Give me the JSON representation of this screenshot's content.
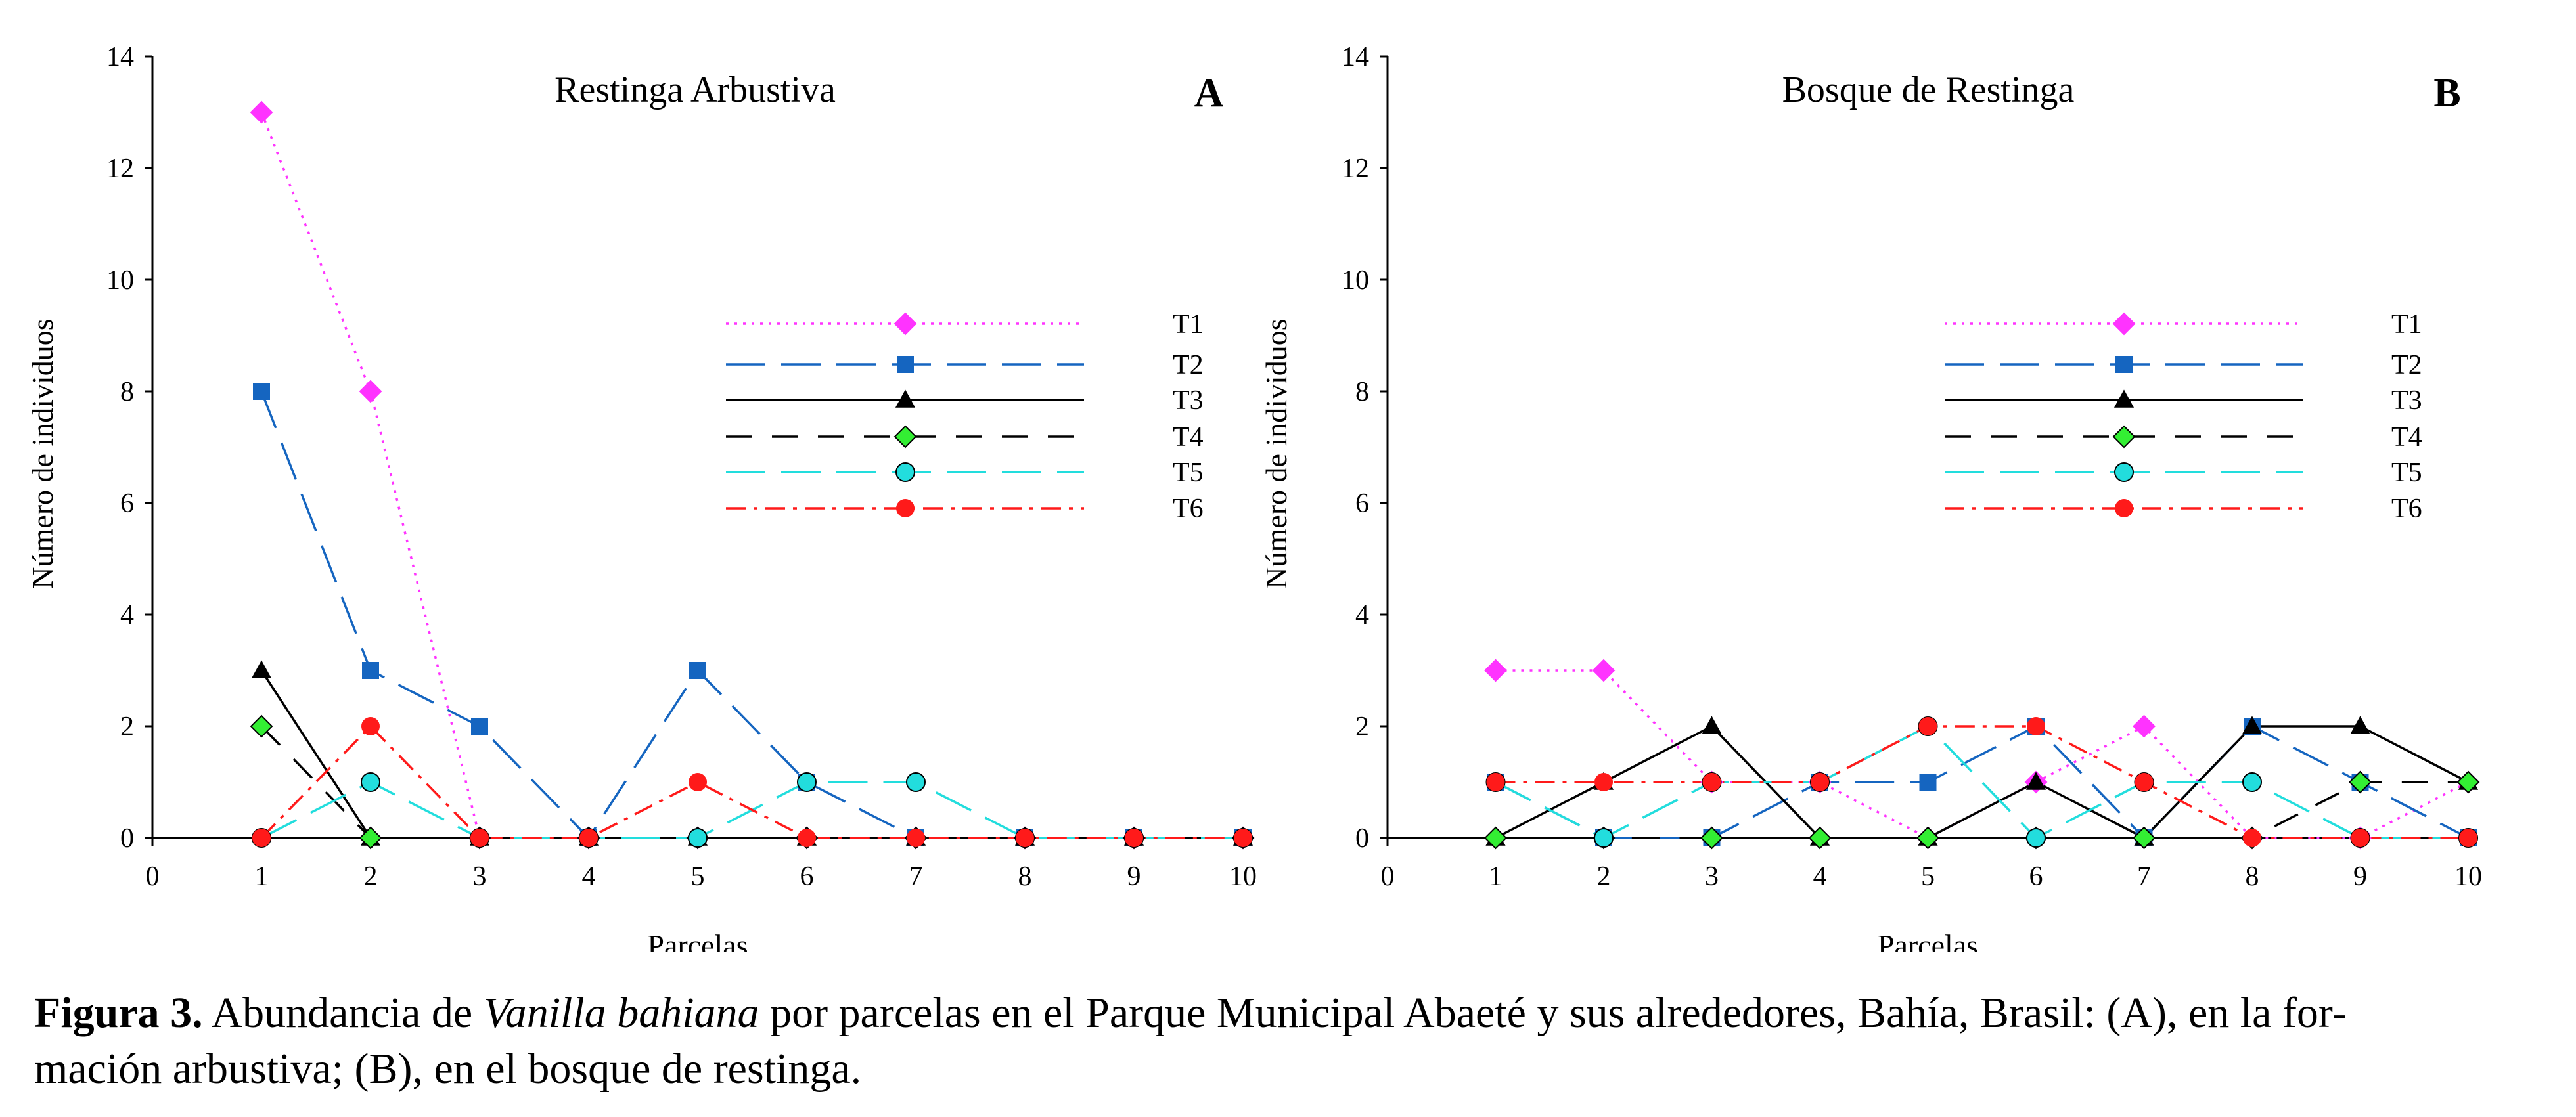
{
  "caption": {
    "label": "Figura 3.",
    "pre": " Abundancia de ",
    "species": "Vanilla bahiana",
    "post": " por parcelas en el Parque Municipal Abaeté y sus alrededores, Bahía, Brasil: (A), en la for-",
    "line2": "mación arbustiva; (B), en el bosque de restinga."
  },
  "chart_data": [
    {
      "type": "line",
      "panel": "A",
      "title": "Restinga Arbustiva",
      "xlabel": "Parcelas",
      "ylabel": "Número de individuos",
      "xlim": [
        0,
        10
      ],
      "ylim": [
        0,
        14
      ],
      "xticks": [
        0,
        1,
        2,
        3,
        4,
        5,
        6,
        7,
        8,
        9,
        10
      ],
      "yticks": [
        0,
        2,
        4,
        6,
        8,
        10,
        12,
        14
      ],
      "grid": false,
      "legend_position": "right-center",
      "series": [
        {
          "name": "T1",
          "x": [
            1,
            2,
            3,
            4,
            5,
            6,
            7,
            8,
            9,
            10
          ],
          "y": [
            13,
            8,
            0,
            0,
            0,
            0,
            0,
            0,
            0,
            0
          ],
          "color": "#ff33ff",
          "marker": "diamond",
          "dash": "dotted"
        },
        {
          "name": "T2",
          "x": [
            1,
            2,
            3,
            4,
            5,
            6,
            7,
            8,
            9,
            10
          ],
          "y": [
            8,
            3,
            2,
            0,
            3,
            1,
            0,
            0,
            0,
            0
          ],
          "color": "#1565c0",
          "marker": "square",
          "dash": "longdash"
        },
        {
          "name": "T3",
          "x": [
            1,
            2,
            3,
            4,
            5,
            6,
            7,
            8,
            9,
            10
          ],
          "y": [
            3,
            0,
            0,
            0,
            0,
            0,
            0,
            0,
            0,
            0
          ],
          "color": "#000000",
          "marker": "triangle",
          "dash": "solid"
        },
        {
          "name": "T4",
          "x": [
            1,
            2,
            3,
            4,
            5,
            6,
            7,
            8,
            9,
            10
          ],
          "y": [
            2,
            0,
            0,
            0,
            0,
            0,
            0,
            0,
            0,
            0
          ],
          "color": "#000000",
          "marker": "diamond",
          "marker_fill": "#33ee33",
          "dash": "dashed"
        },
        {
          "name": "T5",
          "x": [
            1,
            2,
            3,
            4,
            5,
            6,
            7,
            8,
            9,
            10
          ],
          "y": [
            0,
            1,
            0,
            0,
            0,
            1,
            1,
            0,
            0,
            0
          ],
          "color": "#22dddd",
          "marker": "circle",
          "dash": "longdash"
        },
        {
          "name": "T6",
          "x": [
            1,
            2,
            3,
            4,
            5,
            6,
            7,
            8,
            9,
            10
          ],
          "y": [
            0,
            2,
            0,
            0,
            1,
            0,
            0,
            0,
            0,
            0
          ],
          "color": "#ff1a1a",
          "marker": "circle",
          "dash": "dashdot"
        }
      ]
    },
    {
      "type": "line",
      "panel": "B",
      "title": "Bosque de Restinga",
      "xlabel": "Parcelas",
      "ylabel": "Número de individuos",
      "xlim": [
        0,
        10
      ],
      "ylim": [
        0,
        14
      ],
      "xticks": [
        0,
        1,
        2,
        3,
        4,
        5,
        6,
        7,
        8,
        9,
        10
      ],
      "yticks": [
        0,
        2,
        4,
        6,
        8,
        10,
        12,
        14
      ],
      "grid": false,
      "legend_position": "right-center",
      "series": [
        {
          "name": "T1",
          "x": [
            1,
            2,
            3,
            4,
            5,
            6,
            7,
            8,
            9,
            10
          ],
          "y": [
            3,
            3,
            1,
            1,
            0,
            1,
            2,
            0,
            0,
            1
          ],
          "color": "#ff33ff",
          "marker": "diamond",
          "dash": "dotted"
        },
        {
          "name": "T2",
          "x": [
            1,
            2,
            3,
            4,
            5,
            6,
            7,
            8,
            9,
            10
          ],
          "y": [
            1,
            0,
            0,
            1,
            1,
            2,
            0,
            2,
            1,
            0
          ],
          "color": "#1565c0",
          "marker": "square",
          "dash": "longdash"
        },
        {
          "name": "T3",
          "x": [
            1,
            2,
            3,
            4,
            5,
            6,
            7,
            8,
            9,
            10
          ],
          "y": [
            0,
            1,
            2,
            0,
            0,
            1,
            0,
            2,
            2,
            1
          ],
          "color": "#000000",
          "marker": "triangle",
          "dash": "solid"
        },
        {
          "name": "T4",
          "x": [
            1,
            2,
            3,
            4,
            5,
            6,
            7,
            8,
            9,
            10
          ],
          "y": [
            0,
            0,
            0,
            0,
            0,
            0,
            0,
            0,
            1,
            1
          ],
          "color": "#000000",
          "marker": "diamond",
          "marker_fill": "#33ee33",
          "dash": "dashed"
        },
        {
          "name": "T5",
          "x": [
            1,
            2,
            3,
            4,
            5,
            6,
            7,
            8,
            9,
            10
          ],
          "y": [
            1,
            0,
            1,
            1,
            2,
            0,
            1,
            1,
            0,
            0
          ],
          "color": "#22dddd",
          "marker": "circle",
          "dash": "longdash"
        },
        {
          "name": "T6",
          "x": [
            1,
            2,
            3,
            4,
            5,
            6,
            7,
            8,
            9,
            10
          ],
          "y": [
            1,
            1,
            1,
            1,
            2,
            2,
            1,
            0,
            0,
            0
          ],
          "color": "#ff1a1a",
          "marker": "circle",
          "dash": "dashdot"
        }
      ]
    }
  ]
}
